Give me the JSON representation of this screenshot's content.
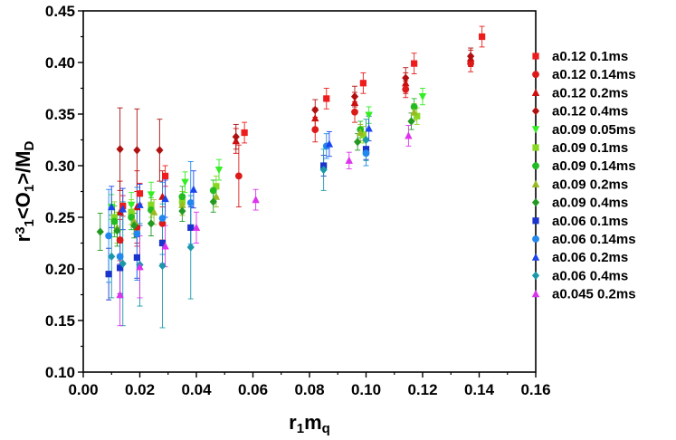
{
  "chart_data": {
    "type": "scatter",
    "xlabel": {
      "main": "r",
      "sub1": "1",
      "main2": "m",
      "sub2": "q"
    },
    "ylabel": {
      "p1": "r",
      "sup": "3",
      "sub1": "1",
      "p2": "<O",
      "sub2": "1",
      "p3": ">/M",
      "sub3": "D"
    },
    "xlim": [
      0.0,
      0.16
    ],
    "ylim": [
      0.1,
      0.45
    ],
    "xticks": [
      "0.00",
      "0.02",
      "0.04",
      "0.06",
      "0.08",
      "0.10",
      "0.12",
      "0.14",
      "0.16"
    ],
    "yticks": [
      "0.10",
      "0.15",
      "0.20",
      "0.25",
      "0.30",
      "0.35",
      "0.40",
      "0.45"
    ],
    "grid": false,
    "legend_position": "right",
    "series": [
      {
        "name": "a0.12 0.1ms",
        "color": "#ee1c1c",
        "marker": "square",
        "points": [
          [
            0.014,
            0.261,
            0.01
          ],
          [
            0.02,
            0.273,
            0.01
          ],
          [
            0.029,
            0.29,
            0.01
          ],
          [
            0.057,
            0.332,
            0.01
          ],
          [
            0.086,
            0.365,
            0.01
          ],
          [
            0.099,
            0.38,
            0.01
          ],
          [
            0.117,
            0.399,
            0.01
          ],
          [
            0.141,
            0.425,
            0.01
          ]
        ]
      },
      {
        "name": "a0.12 0.14ms",
        "color": "#dd1a1a",
        "marker": "circle",
        "points": [
          [
            0.013,
            0.228,
            0.02
          ],
          [
            0.019,
            0.24,
            0.018
          ],
          [
            0.028,
            0.244,
            0.016
          ],
          [
            0.055,
            0.29,
            0.03
          ],
          [
            0.082,
            0.335,
            0.012
          ],
          [
            0.096,
            0.352,
            0.01
          ],
          [
            0.114,
            0.374,
            0.008
          ],
          [
            0.137,
            0.399,
            0.008
          ]
        ]
      },
      {
        "name": "a0.12 0.2ms",
        "color": "#cc1010",
        "marker": "triangle",
        "points": [
          [
            0.013,
            0.255,
            0.03
          ],
          [
            0.019,
            0.26,
            0.035
          ],
          [
            0.028,
            0.27,
            0.025
          ],
          [
            0.054,
            0.324,
            0.012
          ],
          [
            0.082,
            0.346,
            0.01
          ],
          [
            0.096,
            0.361,
            0.01
          ],
          [
            0.114,
            0.38,
            0.01
          ],
          [
            0.137,
            0.404,
            0.008
          ]
        ]
      },
      {
        "name": "a0.12 0.4ms",
        "color": "#b01010",
        "marker": "diamond",
        "points": [
          [
            0.013,
            0.316,
            0.04
          ],
          [
            0.019,
            0.315,
            0.04
          ],
          [
            0.027,
            0.315,
            0.03
          ],
          [
            0.054,
            0.328,
            0.012
          ],
          [
            0.082,
            0.354,
            0.01
          ],
          [
            0.096,
            0.367,
            0.01
          ],
          [
            0.114,
            0.385,
            0.01
          ],
          [
            0.137,
            0.406,
            0.008
          ]
        ]
      },
      {
        "name": "a0.09 0.05ms",
        "color": "#33ee22",
        "marker": "triangle-down",
        "points": [
          [
            0.01,
            0.26,
            0.012
          ],
          [
            0.017,
            0.262,
            0.012
          ],
          [
            0.024,
            0.272,
            0.012
          ],
          [
            0.036,
            0.284,
            0.01
          ],
          [
            0.048,
            0.296,
            0.01
          ],
          [
            0.101,
            0.349,
            0.008
          ],
          [
            0.12,
            0.367,
            0.008
          ]
        ]
      },
      {
        "name": "a0.09 0.1ms",
        "color": "#88d822",
        "marker": "square",
        "points": [
          [
            0.011,
            0.25,
            0.015
          ],
          [
            0.017,
            0.255,
            0.012
          ],
          [
            0.024,
            0.262,
            0.012
          ],
          [
            0.035,
            0.265,
            0.01
          ],
          [
            0.047,
            0.28,
            0.01
          ],
          [
            0.099,
            0.33,
            0.008
          ],
          [
            0.118,
            0.348,
            0.008
          ]
        ]
      },
      {
        "name": "a0.09 0.14ms",
        "color": "#22bb22",
        "marker": "circle",
        "points": [
          [
            0.011,
            0.246,
            0.015
          ],
          [
            0.017,
            0.25,
            0.012
          ],
          [
            0.024,
            0.257,
            0.012
          ],
          [
            0.035,
            0.27,
            0.01
          ],
          [
            0.046,
            0.276,
            0.01
          ],
          [
            0.098,
            0.335,
            0.008
          ],
          [
            0.117,
            0.357,
            0.008
          ]
        ]
      },
      {
        "name": "a0.09 0.2ms",
        "color": "#99bb22",
        "marker": "triangle",
        "points": [
          [
            0.012,
            0.24,
            0.015
          ],
          [
            0.018,
            0.246,
            0.012
          ],
          [
            0.025,
            0.255,
            0.012
          ],
          [
            0.035,
            0.262,
            0.01
          ],
          [
            0.047,
            0.27,
            0.01
          ],
          [
            0.098,
            0.332,
            0.008
          ],
          [
            0.117,
            0.352,
            0.008
          ]
        ]
      },
      {
        "name": "a0.09 0.4ms",
        "color": "#229922",
        "marker": "diamond",
        "points": [
          [
            0.006,
            0.236,
            0.018
          ],
          [
            0.012,
            0.237,
            0.015
          ],
          [
            0.018,
            0.242,
            0.012
          ],
          [
            0.024,
            0.244,
            0.012
          ],
          [
            0.035,
            0.256,
            0.01
          ],
          [
            0.046,
            0.265,
            0.01
          ],
          [
            0.097,
            0.323,
            0.008
          ],
          [
            0.116,
            0.343,
            0.008
          ]
        ]
      },
      {
        "name": "a0.06 0.1ms",
        "color": "#1a33cc",
        "marker": "square",
        "points": [
          [
            0.009,
            0.195,
            0.025
          ],
          [
            0.013,
            0.201,
            0.025
          ],
          [
            0.019,
            0.211,
            0.02
          ],
          [
            0.028,
            0.225,
            0.02
          ],
          [
            0.038,
            0.24,
            0.02
          ],
          [
            0.085,
            0.3,
            0.01
          ],
          [
            0.1,
            0.316,
            0.01
          ]
        ]
      },
      {
        "name": "a0.06 0.14ms",
        "color": "#2288ee",
        "marker": "circle",
        "points": [
          [
            0.009,
            0.232,
            0.045
          ],
          [
            0.013,
            0.212,
            0.04
          ],
          [
            0.019,
            0.234,
            0.045
          ],
          [
            0.028,
            0.249,
            0.035
          ],
          [
            0.038,
            0.264,
            0.04
          ],
          [
            0.086,
            0.319,
            0.012
          ],
          [
            0.1,
            0.312,
            0.012
          ]
        ]
      },
      {
        "name": "a0.06 0.2ms",
        "color": "#1a44ee",
        "marker": "triangle",
        "points": [
          [
            0.01,
            0.26,
            0.02
          ],
          [
            0.014,
            0.258,
            0.02
          ],
          [
            0.02,
            0.262,
            0.02
          ],
          [
            0.029,
            0.268,
            0.018
          ],
          [
            0.039,
            0.277,
            0.018
          ],
          [
            0.087,
            0.321,
            0.012
          ],
          [
            0.101,
            0.336,
            0.012
          ]
        ]
      },
      {
        "name": "a0.06 0.4ms",
        "color": "#1a99aa",
        "marker": "diamond",
        "points": [
          [
            0.01,
            0.212,
            0.04
          ],
          [
            0.014,
            0.205,
            0.06
          ],
          [
            0.02,
            0.204,
            0.04
          ],
          [
            0.028,
            0.203,
            0.06
          ],
          [
            0.038,
            0.221,
            0.05
          ],
          [
            0.085,
            0.296,
            0.02
          ],
          [
            0.1,
            0.325,
            0.02
          ]
        ]
      },
      {
        "name": "a0.045 0.2ms",
        "color": "#dd33ee",
        "marker": "triangle",
        "points": [
          [
            0.013,
            0.175,
            0.03
          ],
          [
            0.02,
            0.202,
            0.03
          ],
          [
            0.029,
            0.222,
            0.02
          ],
          [
            0.04,
            0.24,
            0.015
          ],
          [
            0.061,
            0.267,
            0.01
          ],
          [
            0.094,
            0.305,
            0.008
          ],
          [
            0.115,
            0.329,
            0.01
          ]
        ]
      }
    ]
  }
}
